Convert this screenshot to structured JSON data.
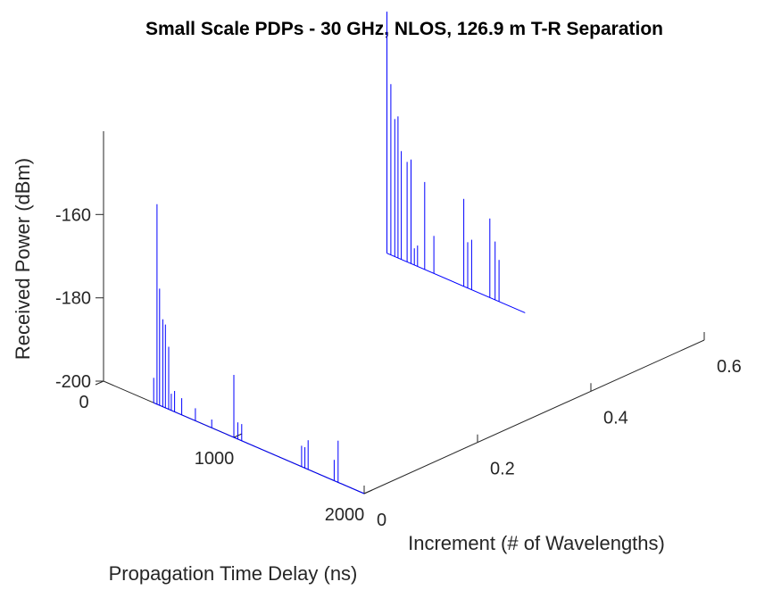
{
  "chart_data": {
    "type": "line",
    "title": "Small Scale PDPs - 30 GHz, NLOS, 126.9 m T-R Separation",
    "xlabel": "Propagation Time Delay (ns)",
    "ylabel": "Increment (# of Wavelengths)",
    "zlabel": "Received Power (dBm)",
    "x_ticks": [
      0,
      1000,
      2000
    ],
    "y_ticks": [
      0,
      0.2,
      0.4,
      0.6
    ],
    "z_ticks": [
      -200,
      -180,
      -160
    ],
    "xlim": [
      0,
      2000
    ],
    "ylim": [
      0,
      0.6
    ],
    "zlim": [
      -200,
      -140
    ],
    "grid": false,
    "line_color": "#0000ff",
    "series": [
      {
        "increment": 0,
        "delays": [
          385,
          410,
          430,
          455,
          475,
          500,
          520,
          545,
          600,
          705,
          830,
          1000,
          1030,
          1060,
          1520,
          1545,
          1570,
          1770,
          1800
        ],
        "powers": [
          -194,
          -152,
          -172,
          -179,
          -180,
          -185,
          -196,
          -195,
          -196,
          -197,
          -198,
          -185,
          -196,
          -196,
          -195,
          -195,
          -193,
          -195,
          -190
        ]
      },
      {
        "increment": 0.5,
        "delays": [
          0,
          30,
          60,
          85,
          110,
          155,
          185,
          210,
          235,
          290,
          360,
          590,
          620,
          650,
          790,
          830,
          860
        ],
        "powers": [
          -142,
          -159,
          -167,
          -166,
          -174,
          -176,
          -175,
          -196,
          -195,
          -179,
          -191,
          -179,
          -189,
          -188,
          -181,
          -186,
          -190
        ]
      }
    ]
  }
}
